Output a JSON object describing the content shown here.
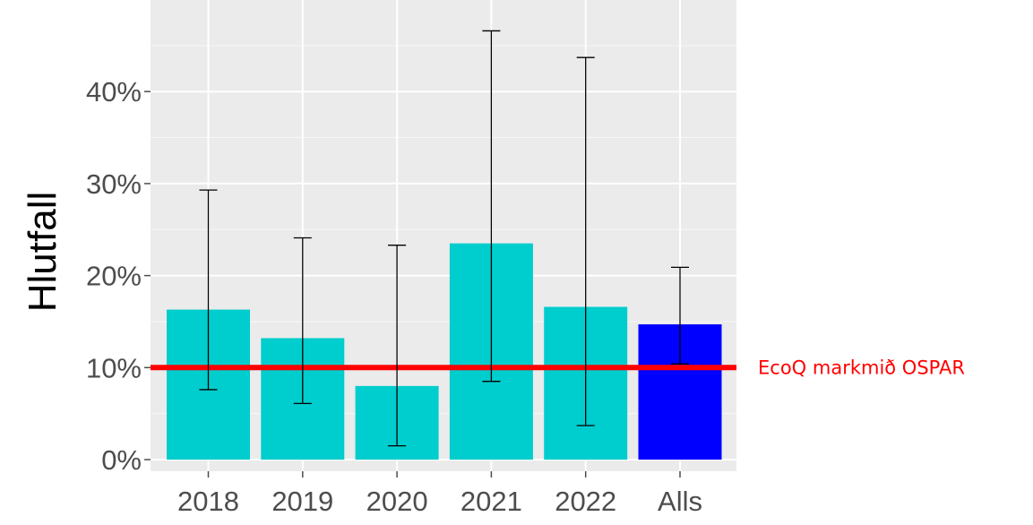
{
  "chart_data": {
    "type": "bar",
    "categories": [
      "2018",
      "2019",
      "2020",
      "2021",
      "2022",
      "Alls"
    ],
    "values": [
      16.3,
      13.2,
      8.0,
      23.5,
      16.6,
      14.7
    ],
    "error_low": [
      7.6,
      6.1,
      1.5,
      8.5,
      3.7,
      10.4
    ],
    "error_high": [
      29.3,
      24.1,
      23.3,
      46.6,
      43.7,
      20.9
    ],
    "bar_colors": [
      "#00CDCD",
      "#00CDCD",
      "#00CDCD",
      "#00CDCD",
      "#00CDCD",
      "#0000FF"
    ],
    "ylabel": "Hlutfall",
    "xlabel": "",
    "ylim": [
      -0.5,
      49
    ],
    "y_ticks": [
      0,
      10,
      20,
      30,
      40
    ],
    "y_tick_labels": [
      "0%",
      "10%",
      "20%",
      "30%",
      "40%"
    ],
    "grid": true,
    "panel_background": "#EBEBEB",
    "reference_line": {
      "value": 10,
      "label": "EcoQ markmið OSPAR",
      "color": "#FF0000"
    }
  }
}
